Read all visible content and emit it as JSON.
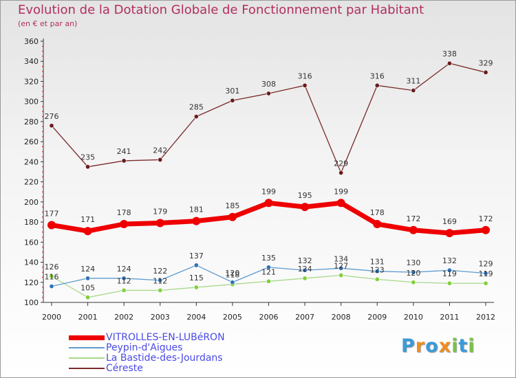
{
  "title": "Evolution de la Dotation Globale de Fonctionnement par Habitant",
  "subtitle": "(en € et par an)",
  "logo": {
    "text": "Proxiti",
    "letters": [
      "P",
      "r",
      "o",
      "x",
      "i",
      "t",
      "i"
    ],
    "colors": [
      "#3a9ad9",
      "#f28c1f",
      "#3a9ad9",
      "#f28c1f",
      "#7cc242",
      "#3a9ad9",
      "#7cc242"
    ]
  },
  "chart_data": {
    "type": "line",
    "title": "Evolution de la Dotation Globale de Fonctionnement par Habitant",
    "subtitle": "(en € et par an)",
    "x": [
      "2000",
      "2001",
      "2002",
      "2003",
      "2004",
      "2005",
      "2006",
      "2007",
      "2008",
      "2009",
      "2010",
      "2011",
      "2012"
    ],
    "ylim": [
      100,
      360
    ],
    "yticks": [
      100,
      120,
      140,
      160,
      180,
      200,
      220,
      240,
      260,
      280,
      300,
      320,
      340,
      360
    ],
    "grid": false,
    "legend_position": "bottom-left",
    "series": [
      {
        "name": "VITROLLES-EN-LUBéRON",
        "color": "#ee0000",
        "marker_color": "#ee0000",
        "width": 7,
        "values": [
          177,
          171,
          178,
          179,
          181,
          185,
          199,
          195,
          199,
          178,
          172,
          169,
          172
        ]
      },
      {
        "name": "Peypin-d'Aigues",
        "color": "#5e9bcf",
        "marker_color": "#2f73b8",
        "width": 1.3,
        "values": [
          116,
          124,
          124,
          122,
          137,
          120,
          135,
          132,
          134,
          131,
          130,
          132,
          129
        ]
      },
      {
        "name": "La Bastide-des-Jourdans",
        "color": "#a7d98a",
        "marker_color": "#83cf3c",
        "width": 1.3,
        "values": [
          126,
          105,
          112,
          112,
          115,
          118,
          121,
          124,
          127,
          123,
          120,
          119,
          119
        ]
      },
      {
        "name": "Céreste",
        "color": "#7a2a2a",
        "marker_color": "#6b1c1c",
        "width": 1.3,
        "values": [
          276,
          235,
          241,
          242,
          285,
          301,
          308,
          316,
          229,
          316,
          311,
          338,
          329
        ]
      }
    ]
  }
}
